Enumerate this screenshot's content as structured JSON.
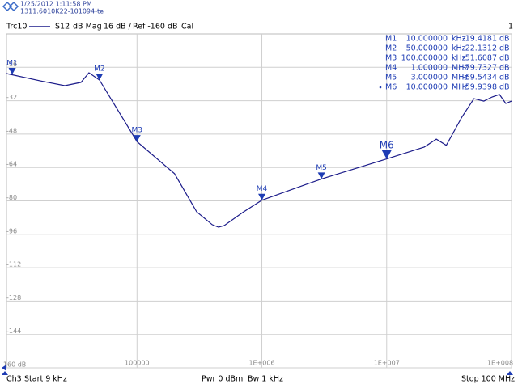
{
  "header": {
    "date": "1/25/2012 1:11:58 PM",
    "id": "1311.6010K22-101094-te"
  },
  "trace_info": {
    "param": "S12",
    "format": "dB Mag",
    "scale": "16 dB /",
    "ref": "Ref -160 dB",
    "cal": "Cal",
    "channel_number": "1"
  },
  "footer": {
    "channel": "Ch3",
    "start": "Start 9 kHz",
    "power": "Pwr 0 dBm",
    "bandwidth": "Bw 1 kHz",
    "stop": "Stop 100 MHz"
  },
  "chart_data": {
    "type": "line",
    "log_x": true,
    "grid": true,
    "x": [
      9000,
      16800,
      26400,
      35600,
      41200,
      50000,
      100000,
      200000,
      300000,
      400000,
      450000,
      500000,
      700000,
      1000000,
      3000000,
      10000000,
      20000000,
      25000000,
      30000000,
      40000000,
      50000000,
      60000000,
      70000000,
      80000000,
      90000000,
      100000000
    ],
    "series": [
      {
        "name": "Trc10",
        "color": "#1c1c8a",
        "values": [
          -19.0,
          -22.5,
          -24.8,
          -23.2,
          -18.6,
          -22.1,
          -51.6,
          -67.0,
          -85.2,
          -91.4,
          -92.6,
          -91.8,
          -85.6,
          -79.7,
          -69.5,
          -59.9,
          -54.2,
          -50.4,
          -53.4,
          -39.9,
          -31.0,
          -32.2,
          -30.2,
          -29.0,
          -33.3,
          -32.2
        ]
      }
    ],
    "xlim": [
      9000,
      100000000
    ],
    "xticks": [
      100000,
      {
        "value": 1000000,
        "label": "1E+006"
      },
      {
        "value": 10000000,
        "label": "1E+007"
      },
      {
        "value": 100000000,
        "label": "1E+008"
      }
    ],
    "ylim": [
      -160,
      0
    ],
    "yticks": [
      {
        "value": -160,
        "label": "-160 dB"
      },
      -144,
      -128,
      -112,
      -96,
      -80,
      -64,
      -48,
      -32,
      -16
    ],
    "markers": [
      {
        "name": "M1",
        "x": 10000,
        "x_label": "10.000000",
        "x_unit": "kHz",
        "y": -19.4181,
        "y_unit": "dB"
      },
      {
        "name": "M2",
        "x": 50000,
        "x_label": "50.000000",
        "x_unit": "kHz",
        "y": -22.1312,
        "y_unit": "dB"
      },
      {
        "name": "M3",
        "x": 100000,
        "x_label": "100.000000",
        "x_unit": "kHz",
        "y": -51.6087,
        "y_unit": "dB"
      },
      {
        "name": "M4",
        "x": 1000000,
        "x_label": "1.000000",
        "x_unit": "MHz",
        "y": -79.7327,
        "y_unit": "dB"
      },
      {
        "name": "M5",
        "x": 3000000,
        "x_label": "3.000000",
        "x_unit": "MHz",
        "y": -69.5434,
        "y_unit": "dB"
      },
      {
        "name": "M6",
        "x": 10000000,
        "x_label": "10.000000",
        "x_unit": "MHz",
        "y": -59.9398,
        "y_unit": "dB"
      }
    ]
  }
}
